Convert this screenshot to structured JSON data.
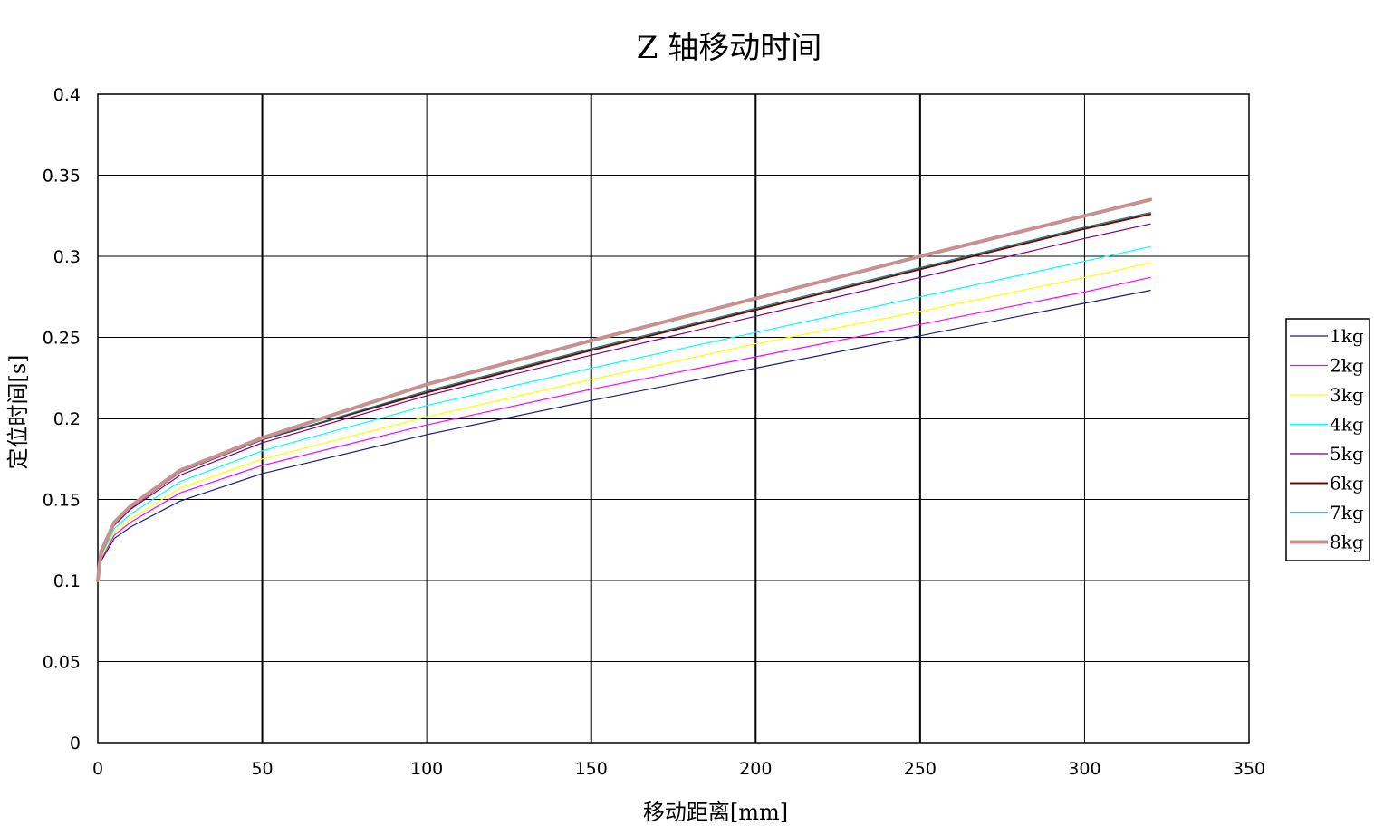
{
  "chart_data": {
    "type": "line",
    "title": "Z 轴移动时间",
    "xlabel": "移动距离[mm]",
    "ylabel": "定位时间[s]",
    "xlim": [
      0,
      350
    ],
    "ylim": [
      0,
      0.4
    ],
    "x_ticks": [
      0,
      50,
      100,
      150,
      200,
      250,
      300,
      350
    ],
    "y_ticks": [
      0,
      0.05,
      0.1,
      0.15,
      0.2,
      0.25,
      0.3,
      0.35,
      0.4
    ],
    "y_tick_labels": [
      "0",
      "0.05",
      "0.1",
      "0.15",
      "0.2",
      "0.25",
      "0.3",
      "0.35",
      "0.4"
    ],
    "grid": true,
    "legend_position": "right",
    "x": [
      0,
      1,
      5,
      10,
      25,
      50,
      100,
      150,
      200,
      250,
      300,
      320
    ],
    "series": [
      {
        "name": "1kg",
        "color": "#1f1f7a",
        "width": 1.2,
        "values": [
          0.1,
          0.112,
          0.126,
          0.133,
          0.149,
          0.166,
          0.19,
          0.211,
          0.231,
          0.251,
          0.271,
          0.279
        ]
      },
      {
        "name": "2kg",
        "color": "#ff00ff",
        "width": 1.2,
        "values": [
          0.1,
          0.113,
          0.128,
          0.136,
          0.154,
          0.171,
          0.196,
          0.218,
          0.238,
          0.258,
          0.278,
          0.287
        ]
      },
      {
        "name": "3kg",
        "color": "#ffff00",
        "width": 1.2,
        "values": [
          0.1,
          0.114,
          0.13,
          0.138,
          0.157,
          0.175,
          0.201,
          0.224,
          0.246,
          0.266,
          0.287,
          0.296
        ]
      },
      {
        "name": "4kg",
        "color": "#00ffff",
        "width": 1.2,
        "values": [
          0.1,
          0.115,
          0.132,
          0.141,
          0.161,
          0.18,
          0.208,
          0.231,
          0.253,
          0.275,
          0.297,
          0.306
        ]
      },
      {
        "name": "5kg",
        "color": "#800080",
        "width": 1.2,
        "values": [
          0.1,
          0.116,
          0.134,
          0.144,
          0.165,
          0.185,
          0.214,
          0.239,
          0.263,
          0.287,
          0.311,
          0.32
        ]
      },
      {
        "name": "6kg",
        "color": "#800000",
        "width": 2,
        "values": [
          0.1,
          0.117,
          0.135,
          0.145,
          0.167,
          0.187,
          0.216,
          0.242,
          0.267,
          0.292,
          0.317,
          0.326
        ]
      },
      {
        "name": "7kg",
        "color": "#008080",
        "width": 1.2,
        "values": [
          0.1,
          0.117,
          0.135,
          0.145,
          0.167,
          0.187,
          0.217,
          0.243,
          0.268,
          0.293,
          0.318,
          0.327
        ]
      },
      {
        "name": "8kg",
        "color": "#c99090",
        "width": 4,
        "values": [
          0.1,
          0.118,
          0.136,
          0.146,
          0.168,
          0.188,
          0.221,
          0.248,
          0.274,
          0.3,
          0.325,
          0.335
        ]
      }
    ]
  }
}
